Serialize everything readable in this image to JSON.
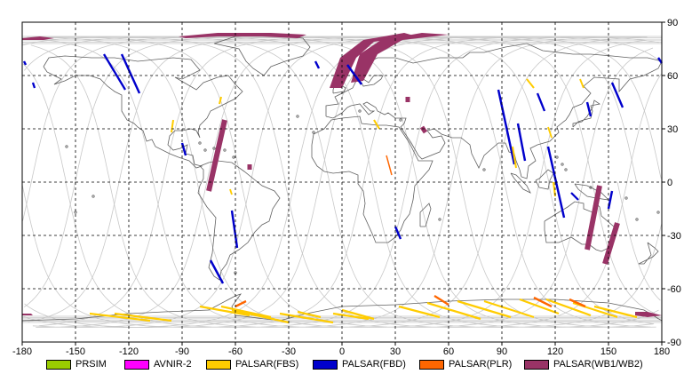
{
  "map": {
    "x_ticks": [
      "-180",
      "-150",
      "-120",
      "-90",
      "-60",
      "-30",
      "0",
      "30",
      "60",
      "90",
      "120",
      "150",
      "180"
    ],
    "y_ticks": [
      "90",
      "60",
      "30",
      "0",
      "-30",
      "-60",
      "-90"
    ],
    "x_range": [
      -180,
      180
    ],
    "y_range": [
      -90,
      90
    ],
    "grid": "dashed"
  },
  "colors": {
    "prism": "#99cc00",
    "avnir2": "#ff00ff",
    "palsar_fbs": "#ffcc00",
    "palsar_fbd": "#0000cc",
    "palsar_plr": "#ff6600",
    "palsar_wb": "#993366",
    "orbit": "#c8c8c8",
    "coast": "#606060"
  },
  "legend": [
    {
      "label": "PRSIM",
      "color": "#99cc00"
    },
    {
      "label": "AVNIR-2",
      "color": "#ff00ff"
    },
    {
      "label": "PALSAR(FBS)",
      "color": "#ffcc00"
    },
    {
      "label": "PALSAR(FBD)",
      "color": "#0000cc"
    },
    {
      "label": "PALSAR(PLR)",
      "color": "#ff6600"
    },
    {
      "label": "PALSAR(WB1/WB2)",
      "color": "#993366"
    }
  ]
}
